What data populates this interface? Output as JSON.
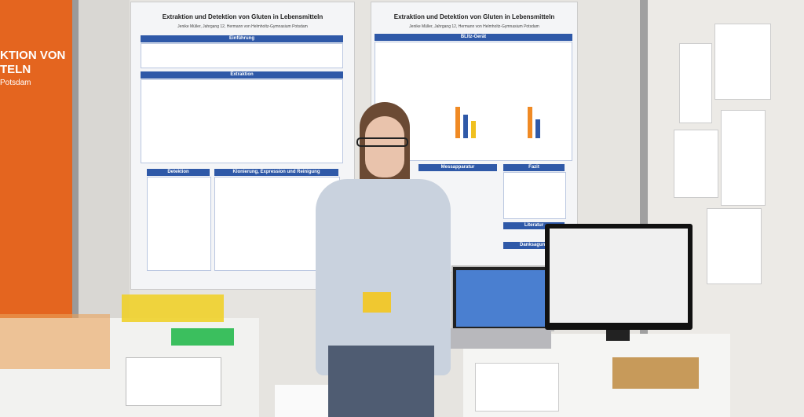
{
  "banner": {
    "lines": [
      "KTION VON",
      "TELN",
      "Potsdam"
    ]
  },
  "poster_left": {
    "title": "Extraktion und Detektion von Gluten in Lebensmitteln",
    "author": "Jenike Müller, Jahrgang 12, Hermann von Helmholtz-Gymnasium Potsdam",
    "sections": [
      "Einführung",
      "Extraktion",
      "Detektion",
      "Klonierung, Expression und Reinigung"
    ]
  },
  "poster_right": {
    "title": "Extraktion und Detektion von Gluten in Lebensmitteln",
    "author": "Jenike Müller, Jahrgang 12, Hermann von Helmholtz-Gymnasium Potsdam",
    "sections": [
      "BLItz-Gerät",
      "Messapparatur",
      "Fazit",
      "Literatur",
      "Danksagung"
    ]
  }
}
